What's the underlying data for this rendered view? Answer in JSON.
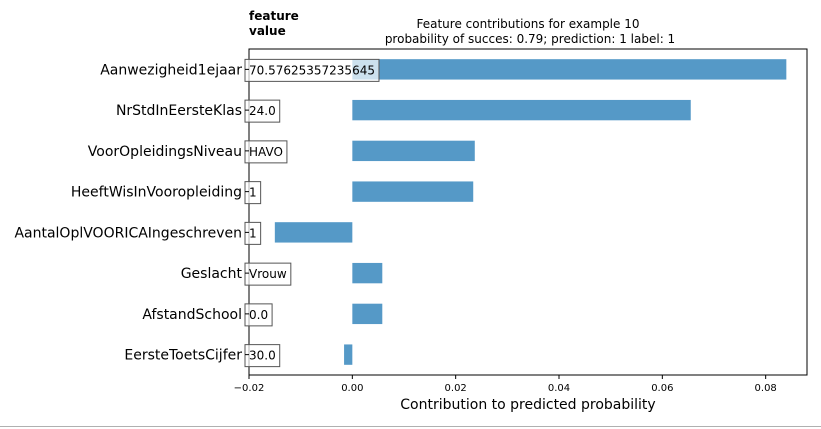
{
  "chart_data": {
    "type": "bar",
    "orientation": "horizontal",
    "title_lines": [
      "Feature contributions for example 10",
      "probability of succes: 0.79; prediction: 1 label: 1"
    ],
    "xlabel": "Contribution to predicted probability",
    "side_header_lines": [
      "feature",
      "value"
    ],
    "xlim": [
      -0.02,
      0.088
    ],
    "xticks": [
      -0.02,
      0.0,
      0.02,
      0.04,
      0.06,
      0.08
    ],
    "xtick_labels": [
      "−0.02",
      "0.00",
      "0.02",
      "0.04",
      "0.06",
      "0.08"
    ],
    "bar_color": "#5599c7",
    "categories": [
      "Aanwezigheid1ejaar",
      "NrStdInEersteKlas",
      "VoorOpleidingsNiveau",
      "HeeftWisInVooropleiding",
      "AantalOplVOORICAIngeschreven",
      "Geslacht",
      "AfstandSchool",
      "EersteToetsCijfer"
    ],
    "values": [
      0.084,
      0.0655,
      0.0237,
      0.0234,
      -0.015,
      0.0058,
      0.0058,
      -0.0016
    ],
    "feature_values": [
      "70.57625357235645",
      "24.0",
      "HAVO",
      "1",
      "1",
      "Vrouw",
      "0.0",
      "30.0"
    ]
  }
}
